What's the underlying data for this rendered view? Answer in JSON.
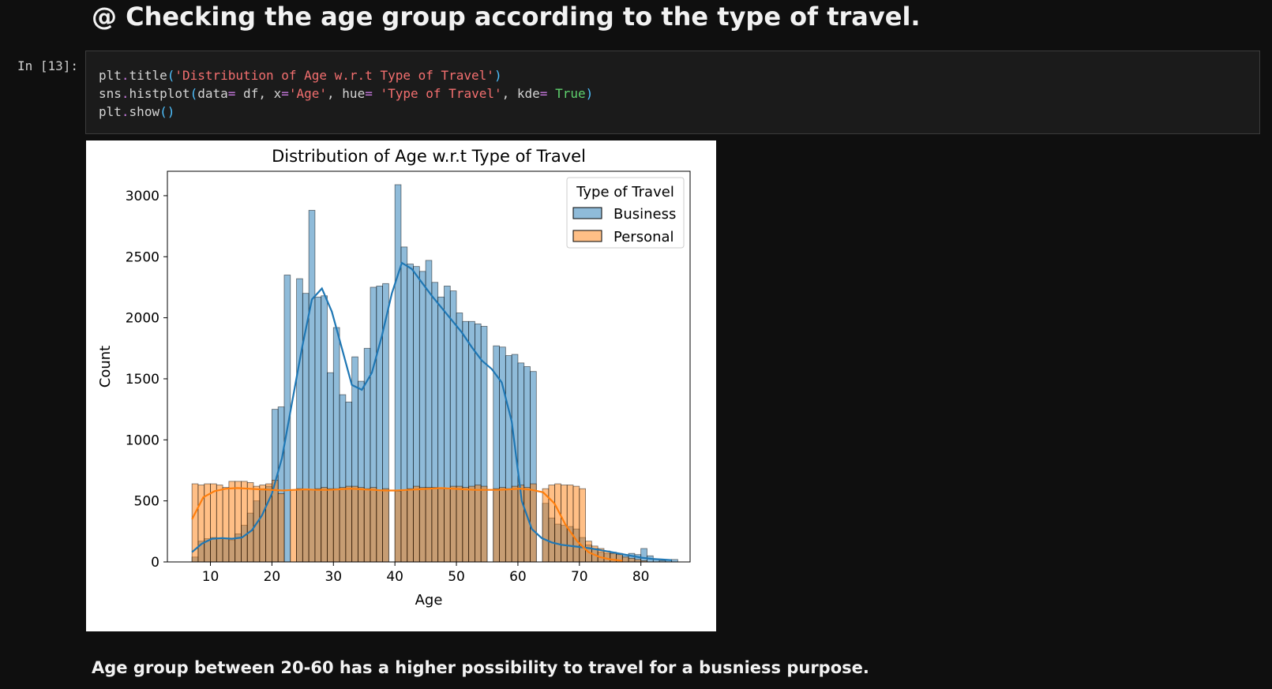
{
  "notebook": {
    "heading": "@ Checking the age group according to the type of travel.",
    "cell_prompt": "In [13]:",
    "code_lines": [
      [
        {
          "t": "plt",
          "c": ""
        },
        {
          "t": ".",
          "c": "op"
        },
        {
          "t": "title",
          "c": ""
        },
        {
          "t": "(",
          "c": "par"
        },
        {
          "t": "'Distribution of Age w.r.t Type of Travel'",
          "c": "str"
        },
        {
          "t": ")",
          "c": "par"
        }
      ],
      [
        {
          "t": "sns",
          "c": ""
        },
        {
          "t": ".",
          "c": "op"
        },
        {
          "t": "histplot",
          "c": ""
        },
        {
          "t": "(",
          "c": "par"
        },
        {
          "t": "data",
          "c": ""
        },
        {
          "t": "=",
          "c": "op"
        },
        {
          "t": " df, x",
          "c": ""
        },
        {
          "t": "=",
          "c": "op"
        },
        {
          "t": "'Age'",
          "c": "str"
        },
        {
          "t": ", hue",
          "c": ""
        },
        {
          "t": "=",
          "c": "op"
        },
        {
          "t": " ",
          "c": ""
        },
        {
          "t": "'Type of Travel'",
          "c": "str"
        },
        {
          "t": ", kde",
          "c": ""
        },
        {
          "t": "=",
          "c": "op"
        },
        {
          "t": " ",
          "c": ""
        },
        {
          "t": "True",
          "c": "kw"
        },
        {
          "t": ")",
          "c": "par"
        }
      ],
      [
        {
          "t": "plt",
          "c": ""
        },
        {
          "t": ".",
          "c": "op"
        },
        {
          "t": "show",
          "c": ""
        },
        {
          "t": "()",
          "c": "par"
        }
      ]
    ],
    "note": "Age group between 20-60 has a higher possibility to travel for a busniess purpose."
  },
  "chart_data": {
    "type": "histogram",
    "title": "Distribution of Age w.r.t Type of Travel",
    "xlabel": "Age",
    "ylabel": "Count",
    "xlim": [
      3,
      88
    ],
    "ylim": [
      0,
      3200
    ],
    "xticks": [
      10,
      20,
      30,
      40,
      50,
      60,
      70,
      80
    ],
    "yticks": [
      0,
      500,
      1000,
      1500,
      2000,
      2500,
      3000
    ],
    "grid": false,
    "legend": {
      "title": "Type of Travel",
      "placement": "top-right"
    },
    "bin_width": 1,
    "bin_starts": [
      7,
      8,
      9,
      10,
      11,
      12,
      13,
      14,
      15,
      16,
      17,
      18,
      19,
      20,
      21,
      22,
      23,
      24,
      25,
      26,
      27,
      28,
      29,
      30,
      31,
      32,
      33,
      34,
      35,
      36,
      37,
      38,
      39,
      40,
      41,
      42,
      43,
      44,
      45,
      46,
      47,
      48,
      49,
      50,
      51,
      52,
      53,
      54,
      55,
      56,
      57,
      58,
      59,
      60,
      61,
      62,
      63,
      64,
      65,
      66,
      67,
      68,
      69,
      70,
      71,
      72,
      73,
      74,
      75,
      76,
      77,
      78,
      79,
      80,
      81,
      82,
      83,
      84,
      85
    ],
    "series": [
      {
        "name": "Business",
        "color": "#1f77b4",
        "values": [
          40,
          170,
          190,
          200,
          195,
          190,
          180,
          230,
          300,
          400,
          500,
          600,
          620,
          1250,
          1270,
          2350,
          0,
          2320,
          2200,
          2880,
          2170,
          2180,
          1550,
          1920,
          1370,
          1310,
          1680,
          1480,
          1750,
          2250,
          2260,
          2280,
          0,
          3090,
          2580,
          2440,
          2420,
          2380,
          2470,
          2290,
          2170,
          2260,
          2220,
          2040,
          1970,
          1970,
          1950,
          1930,
          0,
          1770,
          1760,
          1690,
          1700,
          1630,
          1600,
          1560,
          0,
          480,
          360,
          310,
          300,
          290,
          270,
          200,
          140,
          110,
          80,
          70,
          80,
          70,
          60,
          70,
          60,
          110,
          50,
          20,
          10,
          20,
          20
        ],
        "kde": [
          80,
          150,
          190,
          195,
          190,
          200,
          260,
          380,
          560,
          850,
          1300,
          1750,
          2150,
          2240,
          2050,
          1750,
          1450,
          1410,
          1550,
          1850,
          2200,
          2450,
          2400,
          2290,
          2180,
          2080,
          1980,
          1880,
          1760,
          1650,
          1580,
          1470,
          1150,
          500,
          270,
          195,
          160,
          140,
          130,
          120,
          110,
          95,
          80,
          65,
          50,
          35,
          25,
          20,
          15
        ]
      },
      {
        "name": "Personal",
        "color": "#ff7f0e",
        "values": [
          640,
          630,
          640,
          640,
          630,
          610,
          660,
          660,
          660,
          650,
          620,
          630,
          640,
          670,
          560,
          0,
          590,
          600,
          590,
          590,
          600,
          610,
          600,
          600,
          610,
          620,
          620,
          610,
          600,
          610,
          590,
          600,
          0,
          580,
          590,
          600,
          620,
          610,
          610,
          610,
          600,
          600,
          620,
          620,
          610,
          620,
          630,
          620,
          0,
          600,
          610,
          600,
          620,
          630,
          610,
          640,
          0,
          600,
          630,
          640,
          630,
          630,
          620,
          600,
          170,
          130,
          110,
          90,
          70,
          60,
          40,
          30,
          20,
          10,
          0,
          0,
          0,
          0,
          0
        ],
        "kde": [
          350,
          530,
          580,
          600,
          605,
          600,
          595,
          590,
          585,
          590,
          595,
          590,
          590,
          595,
          600,
          595,
          590,
          585,
          585,
          590,
          595,
          600,
          605,
          600,
          595,
          590,
          590,
          590,
          595,
          600,
          590,
          570,
          480,
          300,
          170,
          80,
          40,
          20,
          10
        ]
      }
    ]
  }
}
